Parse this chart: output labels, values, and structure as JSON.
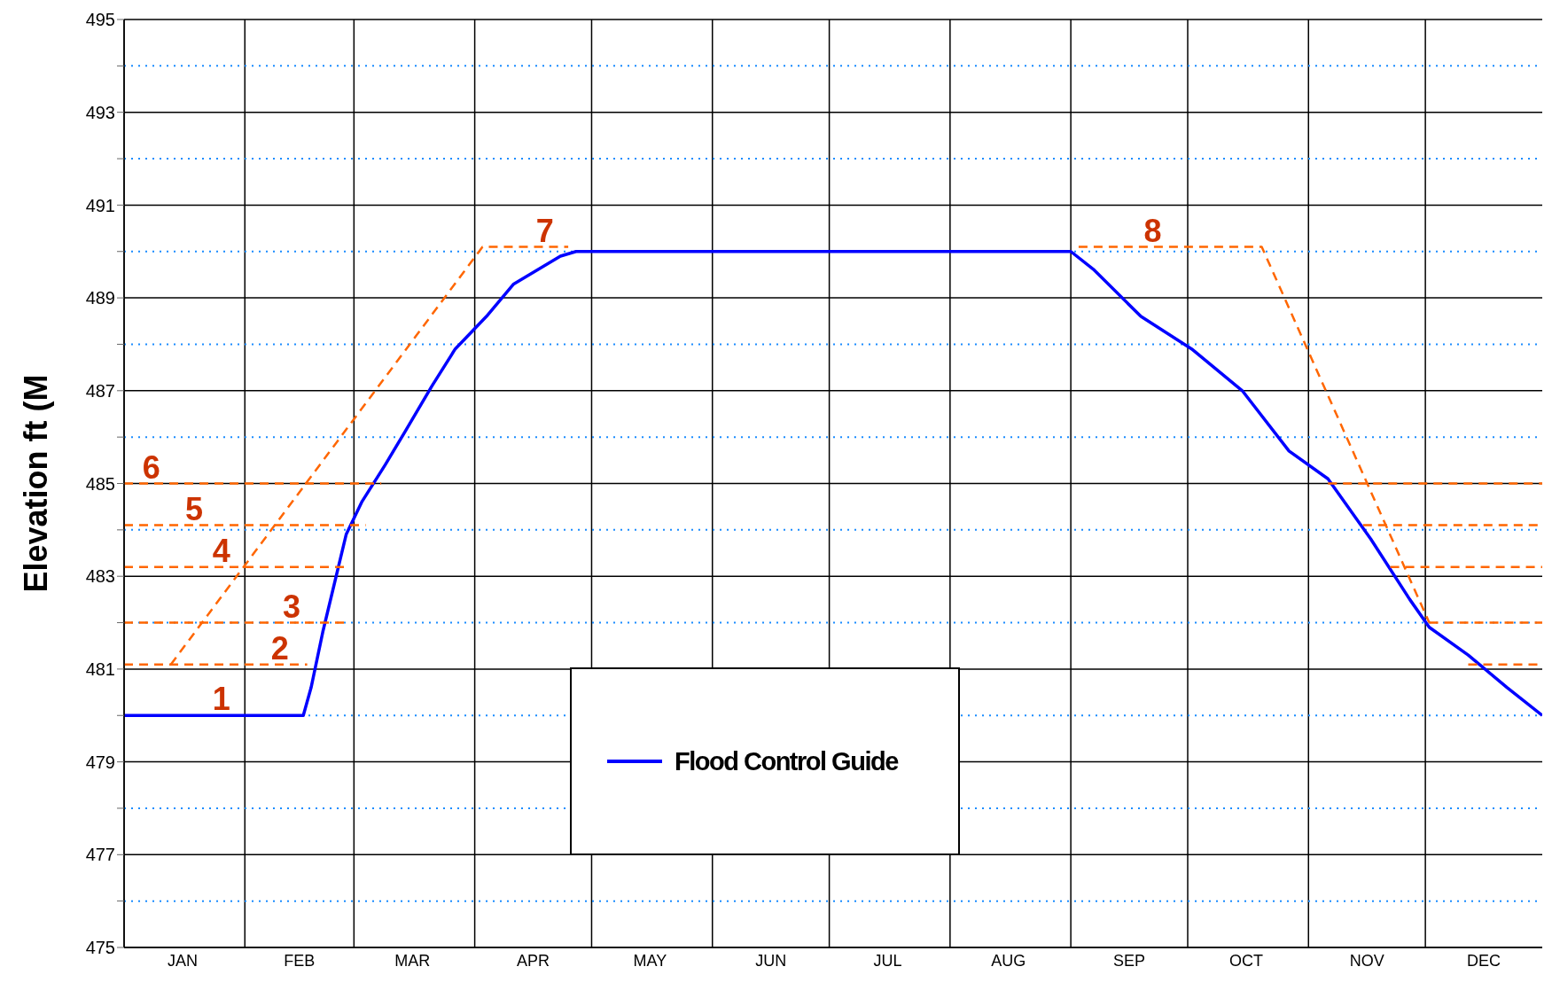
{
  "chart_data": {
    "type": "line",
    "ylabel": "Elevation ft (M",
    "xlim": [
      "--01-01",
      "--12-31"
    ],
    "xticks": [
      {
        "value": "--01-01",
        "label": null
      },
      {
        "value": "--01-16",
        "label": "JAN"
      },
      {
        "value": "--02-01",
        "label": null
      },
      {
        "value": "--02-15",
        "label": "FEB"
      },
      {
        "value": "--03-01",
        "label": null
      },
      {
        "value": "--03-16",
        "label": "MAR"
      },
      {
        "value": "--04-01",
        "label": null
      },
      {
        "value": "--04-16",
        "label": "APR"
      },
      {
        "value": "--05-01",
        "label": null
      },
      {
        "value": "--05-16",
        "label": "MAY"
      },
      {
        "value": "--06-01",
        "label": null
      },
      {
        "value": "--06-16",
        "label": "JUN"
      },
      {
        "value": "--07-01",
        "label": null
      },
      {
        "value": "--07-16",
        "label": "JUL"
      },
      {
        "value": "--08-01",
        "label": null
      },
      {
        "value": "--08-16",
        "label": "AUG"
      },
      {
        "value": "--09-01",
        "label": null
      },
      {
        "value": "--09-16",
        "label": "SEP"
      },
      {
        "value": "--10-01",
        "label": null
      },
      {
        "value": "--10-16",
        "label": "OCT"
      },
      {
        "value": "--11-01",
        "label": null
      },
      {
        "value": "--11-16",
        "label": "NOV"
      },
      {
        "value": "--12-01",
        "label": null
      },
      {
        "value": "--12-16",
        "label": "DEC"
      }
    ],
    "ylim": [
      475,
      495
    ],
    "yticks": [
      475,
      {
        "value": 476,
        "label": null
      },
      477,
      {
        "value": 478,
        "label": null
      },
      479,
      {
        "value": 480,
        "label": null
      },
      481,
      {
        "value": 482,
        "label": null
      },
      483,
      {
        "value": 484,
        "label": null
      },
      485,
      {
        "value": 486,
        "label": null
      },
      487,
      {
        "value": 488,
        "label": null
      },
      489,
      {
        "value": 490,
        "label": null
      },
      491,
      {
        "value": 492,
        "label": null
      },
      493,
      {
        "value": 494,
        "label": null
      },
      495
    ],
    "grid": true,
    "legend": "bottom",
    "marker": "none",
    "series": [
      {
        "name": "Flood Control Guide",
        "color": "#0000ff",
        "line_style": "solid",
        "x": [
          "--01-01",
          "--02-16",
          "--02-18",
          "--02-21",
          "--02-27",
          "--03-03",
          "--03-09",
          "--03-14",
          "--03-21",
          "--03-27",
          "--04-04",
          "--04-11",
          "--04-23",
          "--04-27",
          "--09-01",
          "--09-07",
          "--09-19",
          "--10-02",
          "--10-15",
          "--10-27",
          "--11-06",
          "--11-17",
          "--11-27",
          "--12-02",
          "--12-12",
          "--12-22",
          "--12-31"
        ],
        "values": [
          480,
          480,
          480.6,
          481.8,
          483.9,
          484.6,
          485.4,
          486.1,
          487.1,
          487.9,
          488.6,
          489.3,
          489.9,
          490,
          490,
          489.6,
          488.6,
          487.9,
          487,
          485.7,
          485.1,
          483.8,
          482.5,
          481.9,
          481.3,
          480.6,
          480
        ]
      },
      {
        "color": "#ff6600",
        "line_style": "dashed",
        "x": [
          "--01-13",
          "--04-03",
          "--04-25"
        ],
        "values": [
          481.1,
          490.1,
          490.1
        ]
      },
      {
        "color": "#ff6600",
        "line_style": "dashed",
        "x": [
          "--01-01",
          "--02-17"
        ],
        "values": [
          481.1,
          481.1
        ]
      },
      {
        "color": "#ff6600",
        "line_style": "dashed",
        "x": [
          "--01-01",
          "--02-27"
        ],
        "values": [
          482,
          482
        ]
      },
      {
        "color": "#ff6600",
        "line_style": "dashed",
        "x": [
          "--01-01",
          "--02-27"
        ],
        "values": [
          483.2,
          483.2
        ]
      },
      {
        "color": "#ff6600",
        "line_style": "dashed",
        "x": [
          "--01-01",
          "--03-04"
        ],
        "values": [
          484.1,
          484.1
        ]
      },
      {
        "color": "#ff6600",
        "line_style": "dashed",
        "x": [
          "--01-01",
          "--03-08"
        ],
        "values": [
          485,
          485
        ]
      },
      {
        "color": "#ff6600",
        "line_style": "dashed",
        "x": [
          "--09-03",
          "--10-20",
          "--12-02"
        ],
        "values": [
          490.1,
          490.1,
          482
        ]
      },
      {
        "color": "#ff6600",
        "line_style": "dashed",
        "x": [
          "--11-06",
          "--12-31"
        ],
        "values": [
          485,
          485
        ]
      },
      {
        "color": "#ff6600",
        "line_style": "dashed",
        "x": [
          "--11-15",
          "--12-31"
        ],
        "values": [
          484.1,
          484.1
        ]
      },
      {
        "color": "#ff6600",
        "line_style": "dashed",
        "x": [
          "--11-22",
          "--12-31"
        ],
        "values": [
          483.2,
          483.2
        ]
      },
      {
        "color": "#ff6600",
        "line_style": "dashed",
        "x": [
          "--12-02",
          "--12-31"
        ],
        "values": [
          482,
          482
        ]
      },
      {
        "color": "#ff6600",
        "line_style": "dashed",
        "x": [
          "--12-12",
          "--12-31"
        ],
        "values": [
          481.1,
          481.1
        ]
      }
    ],
    "annotations": [
      {
        "text": "1",
        "x": "--01-26",
        "y": 480
      },
      {
        "text": "2",
        "x": "--02-10",
        "y": 481.1
      },
      {
        "text": "3",
        "x": "--02-13",
        "y": 482
      },
      {
        "text": "4",
        "x": "--01-26",
        "y": 483.2
      },
      {
        "text": "5",
        "x": "--01-19",
        "y": 484.1
      },
      {
        "text": "6",
        "x": "--01-08",
        "y": 485
      },
      {
        "text": "7",
        "x": "--04-19",
        "y": 490.1
      },
      {
        "text": "8",
        "x": "--09-22",
        "y": 490.1
      }
    ]
  }
}
